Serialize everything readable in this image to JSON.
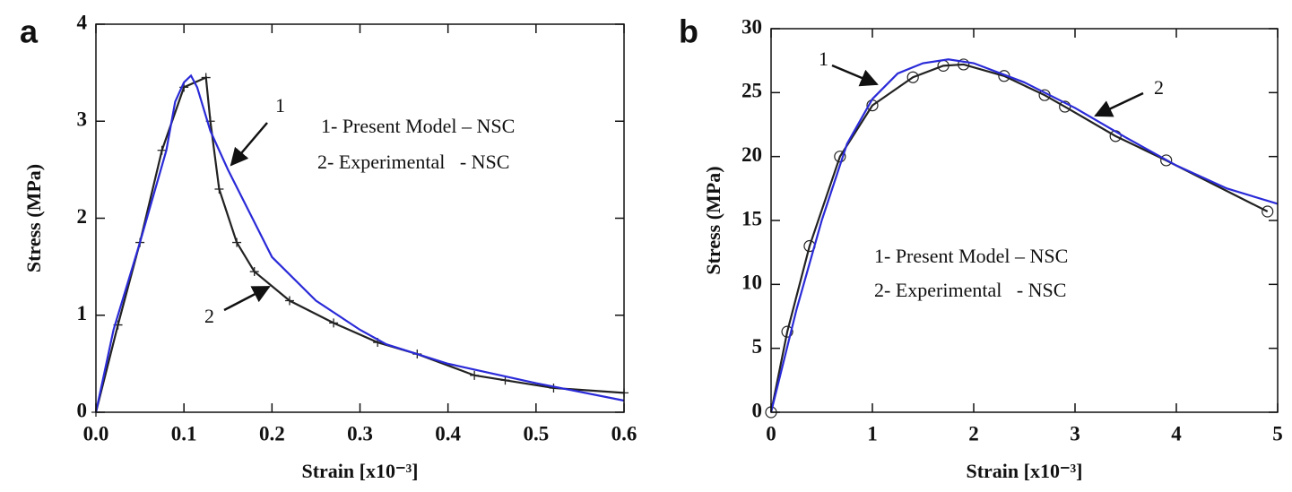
{
  "chart_data": [
    {
      "type": "line",
      "panel_label": "a",
      "x_label": "Strain [x10⁻³]",
      "y_label": "Stress (MPa)",
      "xlim": [
        0,
        0.6
      ],
      "ylim": [
        0,
        4
      ],
      "xticks": [
        {
          "value": 0,
          "label": "0.0"
        },
        0.1,
        0.2,
        0.3,
        0.4,
        0.5,
        0.6
      ],
      "yticks": [
        0,
        1,
        2,
        3,
        4
      ],
      "annotations": [
        "1- Present Model – NSC",
        "2- Experimental   - NSC"
      ],
      "series": [
        {
          "name": "1",
          "color": "#2a2ad8",
          "marker": "none",
          "x": [
            0,
            0.02,
            0.05,
            0.08,
            0.09,
            0.1,
            0.108,
            0.115,
            0.13,
            0.15,
            0.2,
            0.25,
            0.3,
            0.33,
            0.4,
            0.5,
            0.6
          ],
          "values": [
            0,
            0.85,
            1.75,
            2.7,
            3.2,
            3.4,
            3.47,
            3.35,
            2.9,
            2.5,
            1.6,
            1.15,
            0.85,
            0.7,
            0.5,
            0.3,
            0.12
          ]
        },
        {
          "name": "2",
          "color": "#222222",
          "marker": "plus",
          "x": [
            0,
            0.025,
            0.05,
            0.075,
            0.1,
            0.125,
            0.13,
            0.14,
            0.16,
            0.18,
            0.22,
            0.27,
            0.32,
            0.365,
            0.43,
            0.465,
            0.52,
            0.6
          ],
          "values": [
            0,
            0.9,
            1.75,
            2.7,
            3.35,
            3.45,
            3.0,
            2.3,
            1.75,
            1.45,
            1.15,
            0.92,
            0.72,
            0.6,
            0.38,
            0.33,
            0.25,
            0.2
          ]
        }
      ]
    },
    {
      "type": "line",
      "panel_label": "b",
      "x_label": "Strain [x10⁻³]",
      "y_label": "Stress (MPa)",
      "xlim": [
        0,
        5
      ],
      "ylim": [
        0,
        30
      ],
      "xticks": [
        0,
        1,
        2,
        3,
        4,
        5
      ],
      "yticks": [
        0,
        5,
        10,
        15,
        20,
        25,
        30
      ],
      "annotations": [
        "1- Present Model – NSC",
        "2- Experimental   - NSC"
      ],
      "series": [
        {
          "name": "1",
          "color": "#2a2ad8",
          "marker": "none",
          "x": [
            0,
            0.25,
            0.5,
            0.75,
            1,
            1.25,
            1.5,
            1.75,
            2,
            2.5,
            3,
            3.5,
            4,
            4.5,
            5
          ],
          "values": [
            0,
            8,
            15,
            21,
            24.5,
            26.5,
            27.3,
            27.6,
            27.3,
            25.8,
            23.8,
            21.5,
            19.3,
            17.5,
            16.3
          ]
        },
        {
          "name": "2",
          "color": "#222222",
          "marker": "circle",
          "x": [
            0,
            0.16,
            0.38,
            0.68,
            1,
            1.4,
            1.7,
            1.9,
            2.3,
            2.7,
            2.9,
            3.4,
            3.9,
            4.9
          ],
          "values": [
            0,
            6.3,
            13,
            20,
            24,
            26.2,
            27.1,
            27.2,
            26.3,
            24.8,
            23.9,
            21.6,
            19.7,
            15.7
          ]
        }
      ]
    }
  ]
}
